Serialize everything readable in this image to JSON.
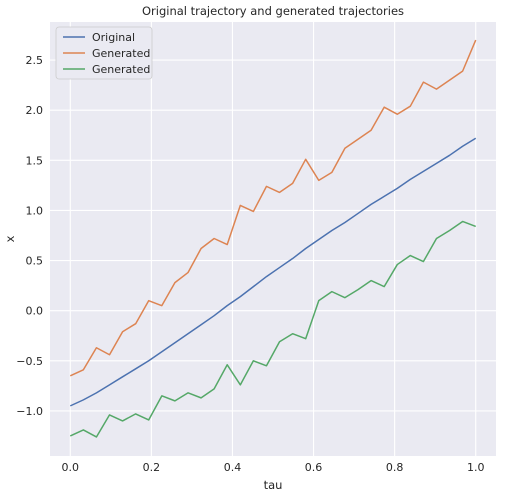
{
  "chart_data": {
    "type": "line",
    "title": "Original trajectory and generated trajectories",
    "xlabel": "tau",
    "ylabel": "x",
    "xlim": [
      -0.05,
      1.05
    ],
    "ylim": [
      -1.45,
      2.88
    ],
    "xticks": [
      0.0,
      0.2,
      0.4,
      0.6,
      0.8,
      1.0
    ],
    "xtick_labels": [
      "0.0",
      "0.2",
      "0.4",
      "0.6",
      "0.8",
      "1.0"
    ],
    "yticks": [
      -1.0,
      -0.5,
      0.0,
      0.5,
      1.0,
      1.5,
      2.0,
      2.5
    ],
    "ytick_labels": [
      "−1.0",
      "−0.5",
      "0.0",
      "0.5",
      "1.0",
      "1.5",
      "2.0",
      "2.5"
    ],
    "grid": true,
    "legend_position": "top-left",
    "background": "#eaeaf2",
    "x": [
      0.0,
      0.0323,
      0.0645,
      0.0968,
      0.129,
      0.1613,
      0.1935,
      0.2258,
      0.2581,
      0.2903,
      0.3226,
      0.3548,
      0.3871,
      0.4194,
      0.4516,
      0.4839,
      0.5161,
      0.5484,
      0.5806,
      0.6129,
      0.6452,
      0.6774,
      0.7097,
      0.7419,
      0.7742,
      0.8065,
      0.8387,
      0.871,
      0.9032,
      0.9355,
      0.9677,
      1.0
    ],
    "series": [
      {
        "name": "Original",
        "color": "#4c72b0",
        "values": [
          -0.95,
          -0.89,
          -0.82,
          -0.74,
          -0.66,
          -0.58,
          -0.5,
          -0.41,
          -0.32,
          -0.23,
          -0.14,
          -0.05,
          0.05,
          0.14,
          0.24,
          0.34,
          0.43,
          0.52,
          0.62,
          0.71,
          0.8,
          0.88,
          0.97,
          1.06,
          1.14,
          1.22,
          1.31,
          1.39,
          1.47,
          1.55,
          1.64,
          1.72
        ]
      },
      {
        "name": "Generated",
        "color": "#dd8452",
        "values": [
          -0.65,
          -0.59,
          -0.37,
          -0.44,
          -0.21,
          -0.13,
          0.1,
          0.05,
          0.28,
          0.38,
          0.62,
          0.72,
          0.66,
          1.05,
          0.99,
          1.24,
          1.18,
          1.27,
          1.51,
          1.3,
          1.38,
          1.62,
          1.71,
          1.8,
          2.03,
          1.96,
          2.04,
          2.28,
          2.21,
          2.3,
          2.39,
          2.7
        ]
      },
      {
        "name": "Generated",
        "color": "#55a868",
        "values": [
          -1.25,
          -1.19,
          -1.26,
          -1.04,
          -1.1,
          -1.03,
          -1.09,
          -0.85,
          -0.9,
          -0.82,
          -0.87,
          -0.78,
          -0.54,
          -0.74,
          -0.5,
          -0.55,
          -0.31,
          -0.23,
          -0.28,
          0.1,
          0.19,
          0.13,
          0.21,
          0.3,
          0.24,
          0.46,
          0.55,
          0.49,
          0.72,
          0.8,
          0.89,
          0.84
        ]
      }
    ]
  }
}
